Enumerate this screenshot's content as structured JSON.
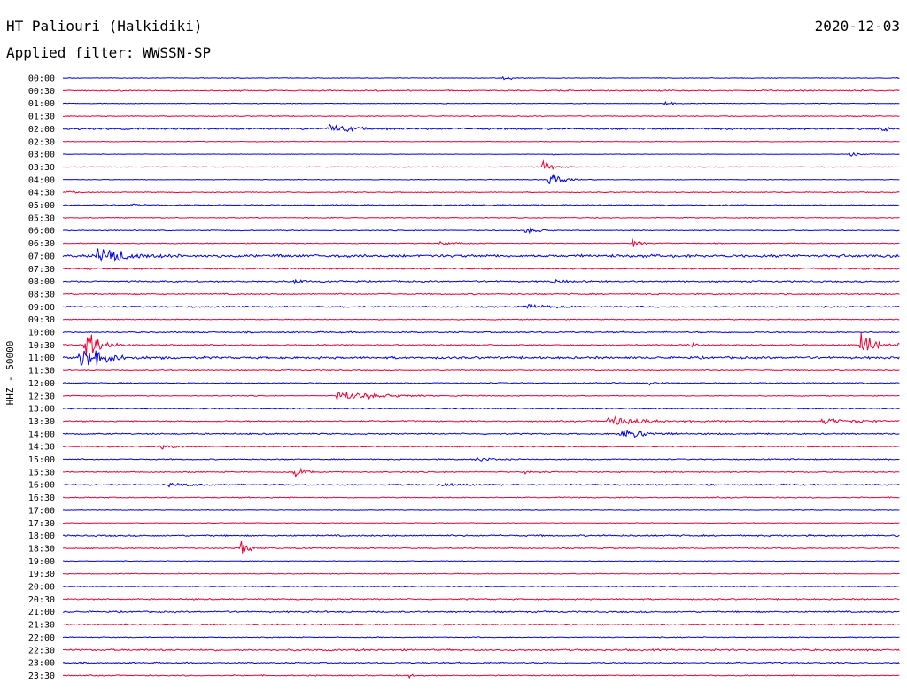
{
  "header": {
    "station": "HT Paliouri (Halkidiki)",
    "date": "2020-12-03",
    "filter": "Applied filter: WWSSN-SP"
  },
  "colors": {
    "even_trace": "#0000ee",
    "odd_trace": "#ee0033"
  },
  "chart_data": {
    "type": "line",
    "title": "HT Paliouri (Halkidiki)",
    "subtitle": "Applied filter: WWSSN-SP",
    "ylabel": "HHZ - 50000",
    "xlabel": "",
    "grid": false,
    "legend": "none",
    "row_labels": [
      "00:00",
      "00:30",
      "01:00",
      "01:30",
      "02:00",
      "02:30",
      "03:00",
      "03:30",
      "04:00",
      "04:30",
      "05:00",
      "05:30",
      "06:00",
      "06:30",
      "07:00",
      "07:30",
      "08:00",
      "08:30",
      "09:00",
      "09:30",
      "10:00",
      "10:30",
      "11:00",
      "11:30",
      "12:00",
      "12:30",
      "13:00",
      "13:30",
      "14:00",
      "14:30",
      "15:00",
      "15:30",
      "16:00",
      "16:30",
      "17:00",
      "17:30",
      "18:00",
      "18:30",
      "19:00",
      "19:30",
      "20:00",
      "20:30",
      "21:00",
      "21:30",
      "22:00",
      "22:30",
      "23:00",
      "23:30"
    ],
    "row_noise": [
      0.3,
      0.6,
      0.3,
      0.4,
      0.8,
      0.3,
      0.2,
      0.3,
      0.3,
      0.4,
      0.5,
      0.4,
      0.4,
      0.4,
      1.2,
      0.7,
      0.7,
      0.6,
      0.6,
      0.4,
      0.6,
      0.6,
      1.0,
      0.5,
      0.5,
      0.4,
      0.5,
      0.6,
      0.6,
      0.5,
      0.5,
      0.5,
      0.6,
      0.5,
      0.3,
      0.3,
      0.7,
      0.5,
      0.3,
      0.4,
      0.4,
      0.6,
      0.7,
      0.6,
      0.4,
      0.8,
      0.6,
      0.5
    ],
    "events": [
      {
        "row": 0,
        "minute": 15.8,
        "amp": 5,
        "dur": 0.4
      },
      {
        "row": 2,
        "minute": 21.6,
        "amp": 4,
        "dur": 0.3
      },
      {
        "row": 3,
        "minute": 28.5,
        "amp": 2,
        "dur": 0.3
      },
      {
        "row": 4,
        "minute": 9.5,
        "amp": 6,
        "dur": 1.2
      },
      {
        "row": 4,
        "minute": 29.3,
        "amp": 3,
        "dur": 0.6
      },
      {
        "row": 6,
        "minute": 17.5,
        "amp": 2,
        "dur": 0.3
      },
      {
        "row": 6,
        "minute": 28.2,
        "amp": 5,
        "dur": 0.5
      },
      {
        "row": 7,
        "minute": 17.2,
        "amp": 10,
        "dur": 0.5
      },
      {
        "row": 8,
        "minute": 17.4,
        "amp": 12,
        "dur": 0.6
      },
      {
        "row": 9,
        "minute": 0.2,
        "amp": 3,
        "dur": 0.4
      },
      {
        "row": 10,
        "minute": 2.5,
        "amp": 2,
        "dur": 0.3
      },
      {
        "row": 12,
        "minute": 16.6,
        "amp": 6,
        "dur": 0.5
      },
      {
        "row": 13,
        "minute": 13.5,
        "amp": 4,
        "dur": 0.6
      },
      {
        "row": 13,
        "minute": 20.4,
        "amp": 5,
        "dur": 0.5
      },
      {
        "row": 14,
        "minute": 1.2,
        "amp": 14,
        "dur": 1.4
      },
      {
        "row": 16,
        "minute": 8.3,
        "amp": 3,
        "dur": 0.6
      },
      {
        "row": 16,
        "minute": 17.5,
        "amp": 3,
        "dur": 0.8
      },
      {
        "row": 18,
        "minute": 16.5,
        "amp": 4,
        "dur": 1.2
      },
      {
        "row": 21,
        "minute": 0.8,
        "amp": 22,
        "dur": 0.8
      },
      {
        "row": 21,
        "minute": 22.5,
        "amp": 4,
        "dur": 0.3
      },
      {
        "row": 21,
        "minute": 28.6,
        "amp": 16,
        "dur": 0.9
      },
      {
        "row": 22,
        "minute": 0.6,
        "amp": 20,
        "dur": 1.2
      },
      {
        "row": 24,
        "minute": 21.0,
        "amp": 4,
        "dur": 0.4
      },
      {
        "row": 25,
        "minute": 9.8,
        "amp": 7,
        "dur": 2.2
      },
      {
        "row": 27,
        "minute": 19.5,
        "amp": 7,
        "dur": 1.8
      },
      {
        "row": 27,
        "minute": 27.2,
        "amp": 4,
        "dur": 1.6
      },
      {
        "row": 28,
        "minute": 20.0,
        "amp": 7,
        "dur": 1.5
      },
      {
        "row": 29,
        "minute": 3.5,
        "amp": 3,
        "dur": 0.8
      },
      {
        "row": 30,
        "minute": 14.8,
        "amp": 3,
        "dur": 0.8
      },
      {
        "row": 31,
        "minute": 8.3,
        "amp": 8,
        "dur": 0.6
      },
      {
        "row": 31,
        "minute": 16.5,
        "amp": 3,
        "dur": 0.5
      },
      {
        "row": 32,
        "minute": 3.8,
        "amp": 3,
        "dur": 1.0
      },
      {
        "row": 32,
        "minute": 13.5,
        "amp": 3,
        "dur": 1.0
      },
      {
        "row": 37,
        "minute": 6.3,
        "amp": 12,
        "dur": 0.6
      },
      {
        "row": 47,
        "minute": 12.4,
        "amp": 4,
        "dur": 0.2
      }
    ],
    "minutes_per_row": 30
  }
}
